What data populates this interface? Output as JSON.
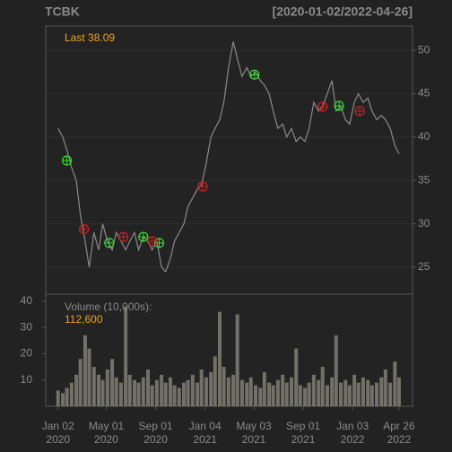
{
  "header": {
    "symbol": "TCBK",
    "range": "[2020-01-02/2022-04-26]"
  },
  "chart_data": [
    {
      "type": "line",
      "grid": true,
      "color": "#8a8a8a",
      "last": {
        "label": "Last",
        "value": 38.09
      },
      "xlim": [
        -21,
        603
      ],
      "ylim": [
        21.9,
        52.8
      ],
      "yticks": [
        25,
        30,
        35,
        40,
        45,
        50
      ],
      "x": [
        0,
        8,
        15,
        23,
        31,
        38,
        46,
        53,
        61,
        69,
        76,
        84,
        92,
        99,
        107,
        115,
        122,
        130,
        137,
        145,
        153,
        160,
        168,
        176,
        183,
        191,
        198,
        206,
        214,
        221,
        229,
        237,
        244,
        252,
        260,
        267,
        275,
        282,
        290,
        298,
        305,
        313,
        321,
        328,
        336,
        344,
        351,
        359,
        366,
        374,
        382,
        389,
        397,
        405,
        412,
        420,
        427,
        435,
        443,
        450,
        458,
        466,
        473,
        481,
        489,
        496,
        504,
        511,
        519,
        527,
        534,
        542,
        550,
        557,
        565,
        573,
        580
      ],
      "values": [
        41,
        40,
        38.5,
        36.5,
        35,
        31,
        28,
        25,
        29,
        27,
        30,
        28,
        27,
        29,
        28,
        27,
        28,
        29,
        27,
        28.5,
        28,
        27,
        28,
        25,
        24.5,
        26,
        28,
        29,
        30,
        32,
        33,
        34,
        34.5,
        37,
        40,
        41,
        42,
        44,
        48,
        51,
        49,
        47,
        48,
        47,
        47.5,
        46.5,
        46,
        45,
        43,
        41,
        41.5,
        40,
        41,
        39.5,
        40,
        39.5,
        41,
        44,
        43,
        43.5,
        45,
        46.5,
        43,
        43.5,
        42,
        41.5,
        44,
        45,
        44,
        44.5,
        43,
        42,
        42.5,
        42,
        41,
        39,
        38.09
      ],
      "buy_signals": {
        "color": "#33dd33",
        "x": [
          15,
          87,
          145,
          172,
          334,
          478
        ],
        "y": [
          37.3,
          27.8,
          28.5,
          27.8,
          47.2,
          43.6
        ]
      },
      "sell_signals": {
        "color": "#cc2222",
        "x": [
          44,
          111,
          160,
          246,
          450,
          513
        ],
        "y": [
          29.4,
          28.5,
          28,
          34.3,
          43.5,
          43
        ]
      }
    },
    {
      "type": "bar",
      "color": "#8c8c80",
      "title": "Volume (10,000s):",
      "last": {
        "value": 112600,
        "label": "112,600"
      },
      "xlim": [
        -21,
        603
      ],
      "ylim": [
        0,
        42.7
      ],
      "yticks": [
        10,
        20,
        30,
        40
      ],
      "xticks": [
        {
          "value": 0,
          "label": "Jan 02\n2020"
        },
        {
          "value": 82,
          "label": "May 01\n2020"
        },
        {
          "value": 166,
          "label": "Sep 01\n2020"
        },
        {
          "value": 250,
          "label": "Jan 04\n2021"
        },
        {
          "value": 333,
          "label": "May 03\n2021"
        },
        {
          "value": 417,
          "label": "Sep 01\n2021"
        },
        {
          "value": 501,
          "label": "Jan 03\n2022"
        },
        {
          "value": 580,
          "label": "Apr 26\n2022"
        }
      ],
      "x": [
        0,
        8,
        15,
        23,
        31,
        38,
        46,
        53,
        61,
        69,
        76,
        84,
        92,
        99,
        107,
        115,
        122,
        130,
        137,
        145,
        153,
        160,
        168,
        176,
        183,
        191,
        198,
        206,
        214,
        221,
        229,
        237,
        244,
        252,
        260,
        267,
        275,
        282,
        290,
        298,
        305,
        313,
        321,
        328,
        336,
        344,
        351,
        359,
        366,
        374,
        382,
        389,
        397,
        405,
        412,
        420,
        427,
        435,
        443,
        450,
        458,
        466,
        473,
        481,
        489,
        496,
        504,
        511,
        519,
        527,
        534,
        542,
        550,
        557,
        565,
        573,
        580
      ],
      "values": [
        6,
        5,
        7,
        9,
        12,
        18,
        27,
        22,
        15,
        12,
        10,
        14,
        18,
        11,
        9,
        38,
        12,
        10,
        9,
        11,
        14,
        8,
        10,
        12,
        9,
        11,
        8,
        7,
        9,
        10,
        12,
        9,
        14,
        11,
        13,
        19,
        36,
        15,
        11,
        12,
        35,
        10,
        9,
        11,
        8,
        7,
        13,
        9,
        8,
        10,
        12,
        9,
        11,
        22,
        8,
        7,
        9,
        12,
        10,
        15,
        8,
        11,
        27,
        9,
        10,
        8,
        12,
        9,
        11,
        10,
        8,
        9,
        11,
        14,
        9,
        17,
        11
      ]
    }
  ]
}
